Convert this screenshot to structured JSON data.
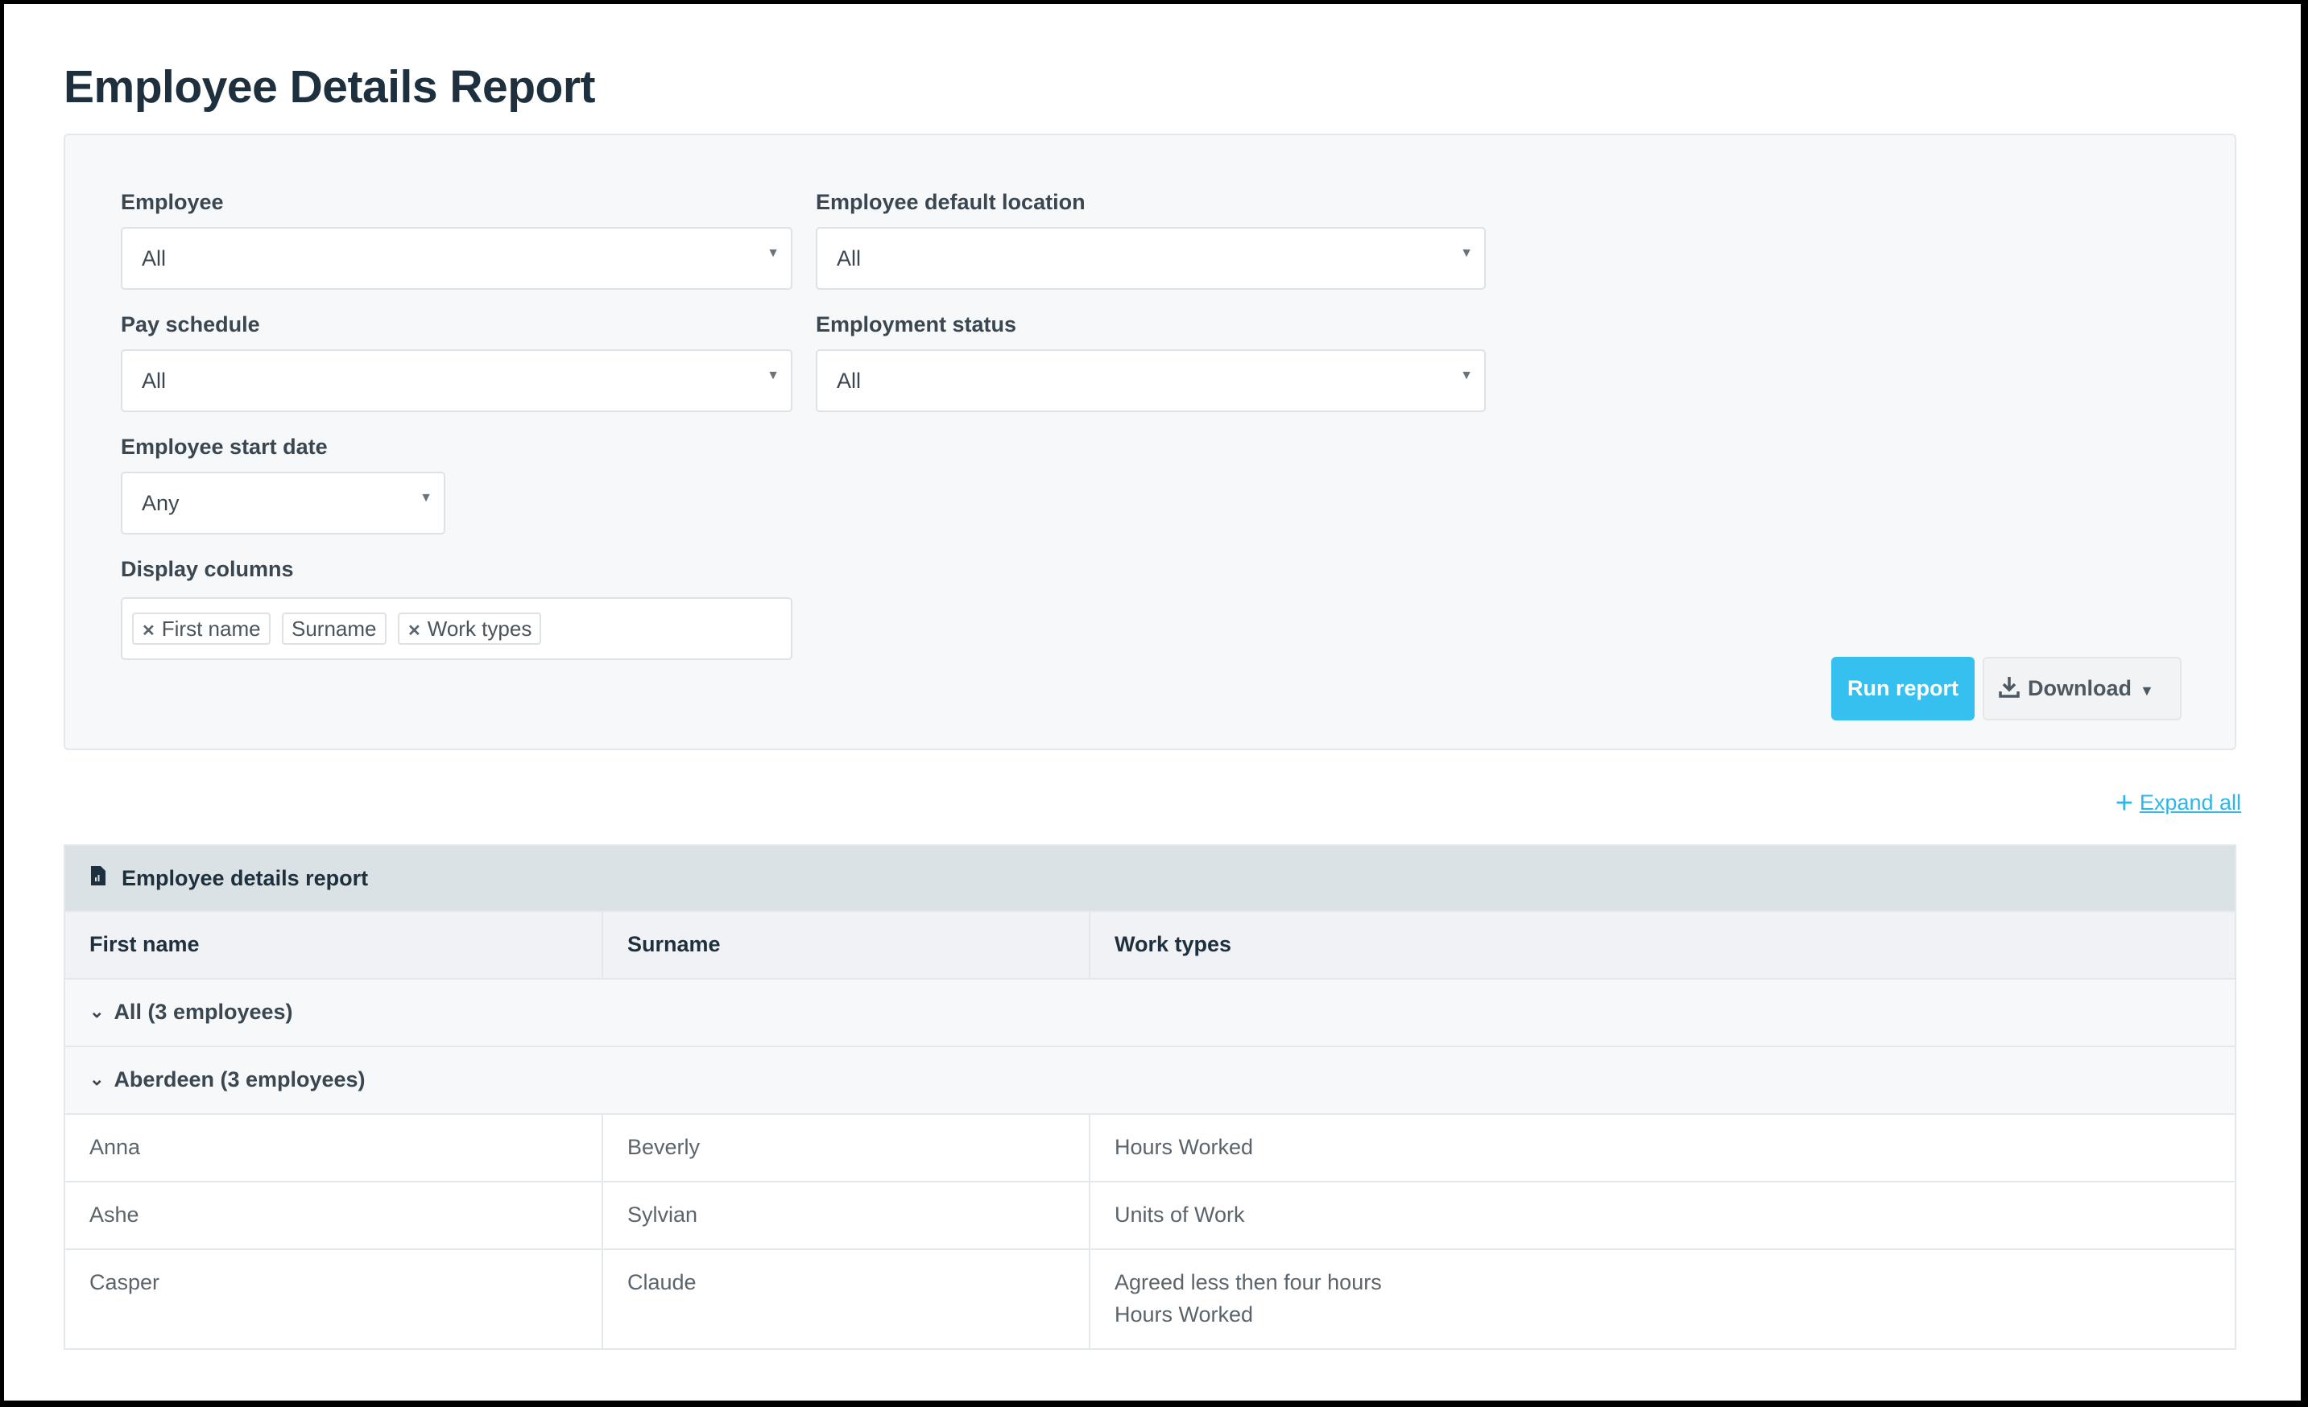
{
  "page_title": "Employee Details Report",
  "filters": {
    "employee": {
      "label": "Employee",
      "value": "All"
    },
    "location": {
      "label": "Employee default location",
      "value": "All"
    },
    "pay_schedule": {
      "label": "Pay schedule",
      "value": "All"
    },
    "employment_status": {
      "label": "Employment status",
      "value": "All"
    },
    "start_date": {
      "label": "Employee start date",
      "value": "Any"
    },
    "display_columns": {
      "label": "Display columns",
      "chips": [
        "First name",
        "Surname",
        "Work types"
      ]
    }
  },
  "actions": {
    "run_report": "Run report",
    "download": "Download",
    "expand_all": "Expand all"
  },
  "accent_color": "#36c0f0",
  "report": {
    "title": "Employee details report",
    "columns": [
      "First name",
      "Surname",
      "Work types"
    ],
    "groups": [
      "All (3 employees)",
      "Aberdeen (3 employees)"
    ],
    "rows": [
      {
        "first": "Anna",
        "surname": "Beverly",
        "work_types": [
          "Hours Worked"
        ]
      },
      {
        "first": "Ashe",
        "surname": "Sylvian",
        "work_types": [
          "Units of Work"
        ]
      },
      {
        "first": "Casper",
        "surname": "Claude",
        "work_types": [
          "Agreed less then four hours",
          "Hours Worked"
        ]
      }
    ]
  }
}
